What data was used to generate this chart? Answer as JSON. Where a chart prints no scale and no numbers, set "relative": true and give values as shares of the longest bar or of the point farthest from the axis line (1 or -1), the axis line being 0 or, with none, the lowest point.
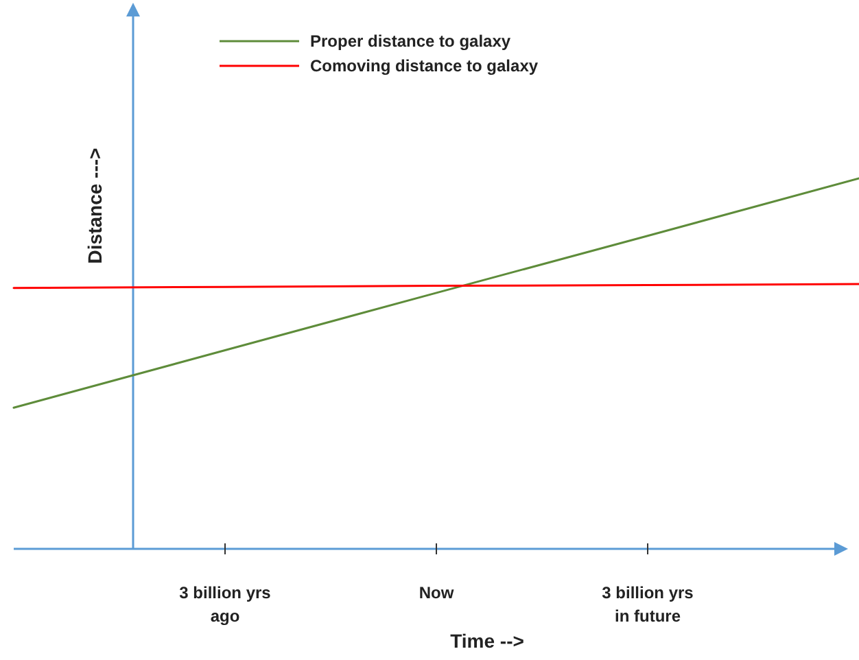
{
  "chart_data": {
    "type": "line",
    "relative": true,
    "xlabel": "Time -->",
    "ylabel": "Distance --->",
    "categories": [
      null,
      "3 billion yrs ago",
      "Now",
      "3 billion yrs in future",
      null
    ],
    "series": [
      {
        "name": "Proper distance to galaxy",
        "color": "#5e8c3a",
        "values": [
          0.381,
          0.536,
          0.691,
          0.845,
          1
        ]
      },
      {
        "name": "Comoving distance to galaxy",
        "color": "#ff0000",
        "values": [
          0.704,
          0.707,
          0.71,
          0.712,
          0.715
        ]
      }
    ],
    "legend": "top",
    "grid": false,
    "line_style": "solid",
    "tick_labels": "x"
  }
}
